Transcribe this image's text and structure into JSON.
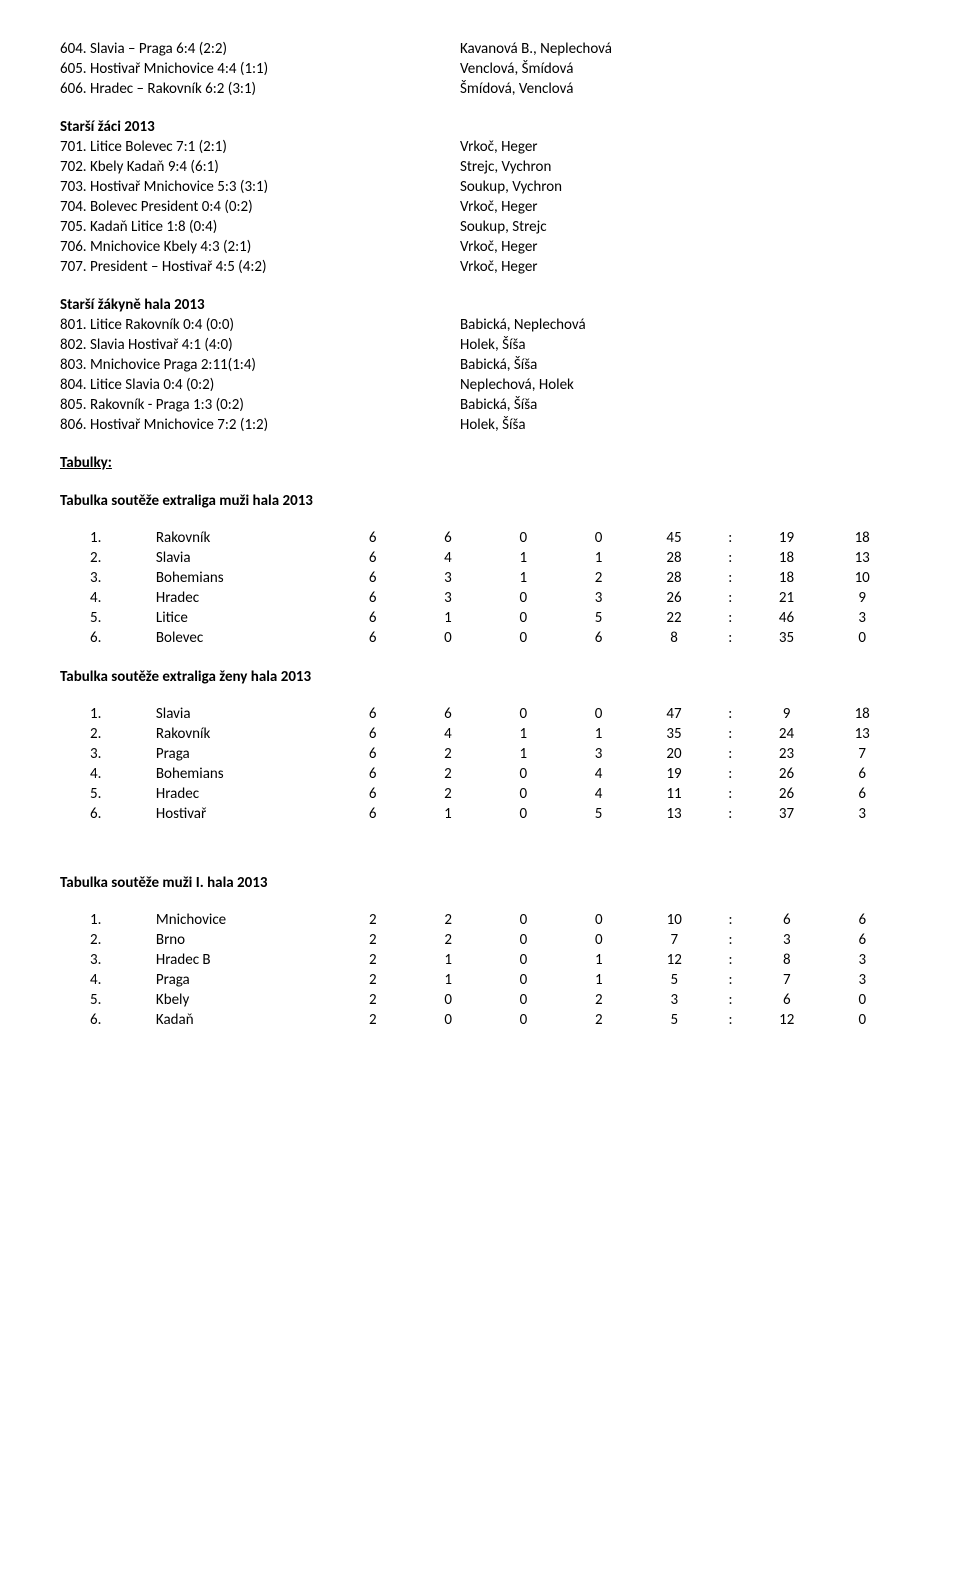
{
  "sections": [
    {
      "heading": null,
      "matches": [
        {
          "left": "604. Slavia – Praga 6:4 (2:2)",
          "right": "Kavanová B., Neplechová"
        },
        {
          "left": "605. Hostivař Mnichovice 4:4 (1:1)",
          "right": "Venclová, Šmídová"
        },
        {
          "left": "606. Hradec – Rakovník 6:2 (3:1)",
          "right": "Šmídová, Venclová"
        }
      ]
    },
    {
      "heading": "Starší žáci  2013",
      "matches": [
        {
          "left": "701. Litice Bolevec 7:1 (2:1)",
          "right": "Vrkoč, Heger"
        },
        {
          "left": "702. Kbely Kadaň 9:4 (6:1)",
          "right": "Strejc, Vychron"
        },
        {
          "left": "703. Hostivař Mnichovice 5:3 (3:1)",
          "right": "Soukup, Vychron"
        },
        {
          "left": "704. Bolevec President 0:4 (0:2)",
          "right": "Vrkoč, Heger"
        },
        {
          "left": "705. Kadaň Litice 1:8 (0:4)",
          "right": "Soukup, Strejc"
        },
        {
          "left": "706. Mnichovice Kbely 4:3 (2:1)",
          "right": "Vrkoč, Heger"
        },
        {
          "left": "707. President – Hostivař 4:5 (4:2)",
          "right": "Vrkoč, Heger"
        }
      ]
    },
    {
      "heading": "Starší žákyně  hala 2013",
      "matches": [
        {
          "left": "801. Litice Rakovník 0:4 (0:0)",
          "right": "Babická, Neplechová"
        },
        {
          "left": "802. Slavia Hostivař 4:1 (4:0)",
          "right": "Holek, Šíša"
        },
        {
          "left": "803. Mnichovice Praga 2:11(1:4)",
          "right": "Babická, Šíša"
        },
        {
          "left": "804. Litice Slavia 0:4 (0:2)",
          "right": "Neplechová, Holek"
        },
        {
          "left": "805. Rakovník - Praga 1:3 (0:2)",
          "right": "Babická, Šíša"
        },
        {
          "left": "806. Hostivař Mnichovice 7:2 (1:2)",
          "right": "Holek, Šíša"
        }
      ]
    }
  ],
  "tabulky_label": "Tabulky:",
  "tables": [
    {
      "title": "Tabulka soutěže extraliga muži hala 2013",
      "rows": [
        {
          "rank": "1.",
          "team": "Rakovník",
          "c1": "6",
          "c2": "6",
          "c3": "0",
          "c4": "0",
          "c5": "45",
          "colon": ":",
          "c6": "19",
          "c7": "18"
        },
        {
          "rank": "2.",
          "team": "Slavia",
          "c1": "6",
          "c2": "4",
          "c3": "1",
          "c4": "1",
          "c5": "28",
          "colon": ":",
          "c6": "18",
          "c7": "13"
        },
        {
          "rank": "3.",
          "team": "Bohemians",
          "c1": "6",
          "c2": "3",
          "c3": "1",
          "c4": "2",
          "c5": "28",
          "colon": ":",
          "c6": "18",
          "c7": "10"
        },
        {
          "rank": "4.",
          "team": "Hradec",
          "c1": "6",
          "c2": "3",
          "c3": "0",
          "c4": "3",
          "c5": "26",
          "colon": ":",
          "c6": "21",
          "c7": "9"
        },
        {
          "rank": "5.",
          "team": "Litice",
          "c1": "6",
          "c2": "1",
          "c3": "0",
          "c4": "5",
          "c5": "22",
          "colon": ":",
          "c6": "46",
          "c7": "3"
        },
        {
          "rank": "6.",
          "team": "Bolevec",
          "c1": "6",
          "c2": "0",
          "c3": "0",
          "c4": "6",
          "c5": "8",
          "colon": ":",
          "c6": "35",
          "c7": "0"
        }
      ]
    },
    {
      "title": "Tabulka soutěže extraliga ženy hala 2013",
      "rows": [
        {
          "rank": "1.",
          "team": "Slavia",
          "c1": "6",
          "c2": "6",
          "c3": "0",
          "c4": "0",
          "c5": "47",
          "colon": ":",
          "c6": "9",
          "c7": "18"
        },
        {
          "rank": "2.",
          "team": "Rakovník",
          "c1": "6",
          "c2": "4",
          "c3": "1",
          "c4": "1",
          "c5": "35",
          "colon": ":",
          "c6": "24",
          "c7": "13"
        },
        {
          "rank": "3.",
          "team": "Praga",
          "c1": "6",
          "c2": "2",
          "c3": "1",
          "c4": "3",
          "c5": "20",
          "colon": ":",
          "c6": "23",
          "c7": "7"
        },
        {
          "rank": "4.",
          "team": "Bohemians",
          "c1": "6",
          "c2": "2",
          "c3": "0",
          "c4": "4",
          "c5": "19",
          "colon": ":",
          "c6": "26",
          "c7": "6"
        },
        {
          "rank": "5.",
          "team": "Hradec",
          "c1": "6",
          "c2": "2",
          "c3": "0",
          "c4": "4",
          "c5": "11",
          "colon": ":",
          "c6": "26",
          "c7": "6"
        },
        {
          "rank": "6.",
          "team": "Hostivař",
          "c1": "6",
          "c2": "1",
          "c3": "0",
          "c4": "5",
          "c5": "13",
          "colon": ":",
          "c6": "37",
          "c7": "3"
        }
      ]
    },
    {
      "title": "Tabulka soutěže muži I. hala 2013",
      "spacer_before": true,
      "rows": [
        {
          "rank": "1.",
          "team": "Mnichovice",
          "c1": "2",
          "c2": "2",
          "c3": "0",
          "c4": "0",
          "c5": "10",
          "colon": ":",
          "c6": "6",
          "c7": "6"
        },
        {
          "rank": "2.",
          "team": "Brno",
          "c1": "2",
          "c2": "2",
          "c3": "0",
          "c4": "0",
          "c5": "7",
          "colon": ":",
          "c6": "3",
          "c7": "6"
        },
        {
          "rank": "3.",
          "team": "Hradec B",
          "c1": "2",
          "c2": "1",
          "c3": "0",
          "c4": "1",
          "c5": "12",
          "colon": ":",
          "c6": "8",
          "c7": "3"
        },
        {
          "rank": "4.",
          "team": "Praga",
          "c1": "2",
          "c2": "1",
          "c3": "0",
          "c4": "1",
          "c5": "5",
          "colon": ":",
          "c6": "7",
          "c7": "3"
        },
        {
          "rank": "5.",
          "team": "Kbely",
          "c1": "2",
          "c2": "0",
          "c3": "0",
          "c4": "2",
          "c5": "3",
          "colon": ":",
          "c6": "6",
          "c7": "0"
        },
        {
          "rank": "6.",
          "team": "Kadaň",
          "c1": "2",
          "c2": "0",
          "c3": "0",
          "c4": "2",
          "c5": "5",
          "colon": ":",
          "c6": "12",
          "c7": "0"
        }
      ]
    }
  ]
}
